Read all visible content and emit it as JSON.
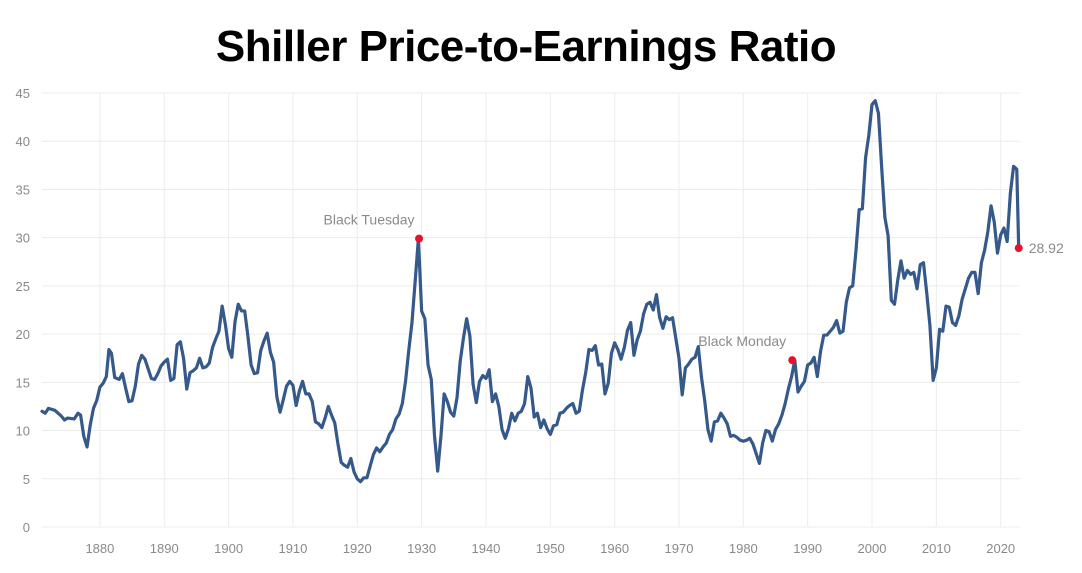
{
  "chart_data": {
    "type": "line",
    "title": "Shiller Price-to-Earnings Ratio",
    "xlabel": "",
    "ylabel": "",
    "xlim": [
      1871,
      2023
    ],
    "ylim": [
      0,
      45
    ],
    "x_ticks": [
      1880,
      1890,
      1900,
      1910,
      1920,
      1930,
      1940,
      1950,
      1960,
      1970,
      1980,
      1990,
      2000,
      2010,
      2020
    ],
    "y_ticks": [
      0,
      5,
      10,
      15,
      20,
      25,
      30,
      35,
      40,
      45
    ],
    "grid": true,
    "colors": {
      "line": "#34598a",
      "marker": "#e8112d",
      "grid": "#ececec",
      "axis_text": "#8a8a8a"
    },
    "series": [
      {
        "x": [
          1871,
          1871.5,
          1872,
          1873,
          1874,
          1874.5,
          1875,
          1876,
          1876.6,
          1877,
          1877.5,
          1878,
          1878.5,
          1879,
          1879.5,
          1880,
          1880.5,
          1881,
          1881.4,
          1881.8,
          1882.3,
          1883,
          1883.5,
          1884,
          1884.5,
          1885,
          1885.5,
          1886,
          1886.5,
          1887,
          1888,
          1888.5,
          1889,
          1889.5,
          1890,
          1890.5,
          1891,
          1891.5,
          1892,
          1892.5,
          1893,
          1893.5,
          1894,
          1894.5,
          1895,
          1895.5,
          1896,
          1896.5,
          1897,
          1897.5,
          1898,
          1898.5,
          1899,
          1899.5,
          1900,
          1900.5,
          1901,
          1901.5,
          1902,
          1902.5,
          1903,
          1903.5,
          1904,
          1904.5,
          1905,
          1905.5,
          1906,
          1906.5,
          1907,
          1907.5,
          1908,
          1908.5,
          1909,
          1909.5,
          1910,
          1910.5,
          1911,
          1911.5,
          1912,
          1912.5,
          1913,
          1913.5,
          1914,
          1914.5,
          1915,
          1915.5,
          1916,
          1916.5,
          1917,
          1917.5,
          1918,
          1918.5,
          1919,
          1919.5,
          1920,
          1920.5,
          1921,
          1921.5,
          1922,
          1922.5,
          1923,
          1923.5,
          1924,
          1924.5,
          1925,
          1925.5,
          1926,
          1926.5,
          1927,
          1927.5,
          1928,
          1928.5,
          1929,
          1929.5,
          1930,
          1930.5,
          1931,
          1931.5,
          1932,
          1932.5,
          1933,
          1933.5,
          1934,
          1934.5,
          1935,
          1935.5,
          1936,
          1936.5,
          1937,
          1937.5,
          1938,
          1938.5,
          1939,
          1939.5,
          1940,
          1940.5,
          1941,
          1941.5,
          1942,
          1942.5,
          1943,
          1943.5,
          1944,
          1944.5,
          1945,
          1945.5,
          1946,
          1946.5,
          1947,
          1947.5,
          1948,
          1948.5,
          1949,
          1949.5,
          1950,
          1950.5,
          1951,
          1951.5,
          1952,
          1952.5,
          1953,
          1953.5,
          1954,
          1954.5,
          1955,
          1955.5,
          1956,
          1956.5,
          1957,
          1957.5,
          1958,
          1958.5,
          1959,
          1959.5,
          1960,
          1960.5,
          1961,
          1961.5,
          1962,
          1962.5,
          1963,
          1963.5,
          1964,
          1964.5,
          1965,
          1965.5,
          1966,
          1966.5,
          1967,
          1967.5,
          1968,
          1968.5,
          1969,
          1969.5,
          1970,
          1970.5,
          1971,
          1971.5,
          1972,
          1972.5,
          1973,
          1973.5,
          1974,
          1974.5,
          1975,
          1975.5,
          1976,
          1976.5,
          1977,
          1977.5,
          1978,
          1978.5,
          1979,
          1979.5,
          1980,
          1980.5,
          1981,
          1981.5,
          1982,
          1982.5,
          1983,
          1983.5,
          1984,
          1984.5,
          1985,
          1985.5,
          1986,
          1986.5,
          1987,
          1987.5,
          1988,
          1988.5,
          1989,
          1989.5,
          1990,
          1990.5,
          1991,
          1991.5,
          1992,
          1992.5,
          1993,
          1993.5,
          1994,
          1994.5,
          1995,
          1995.5,
          1996,
          1996.5,
          1997,
          1997.5,
          1998,
          1998.5,
          1999,
          1999.5,
          2000,
          2000.5,
          2001,
          2001.5,
          2002,
          2002.5,
          2003,
          2003.5,
          2004,
          2004.5,
          2005,
          2005.5,
          2006,
          2006.5,
          2007,
          2007.5,
          2008,
          2008.5,
          2009,
          2009.5,
          2010,
          2010.5,
          2011,
          2011.5,
          2012,
          2012.5,
          2013,
          2013.5,
          2014,
          2014.5,
          2015,
          2015.5,
          2016,
          2016.5,
          2017,
          2017.5,
          2018,
          2018.5,
          2019,
          2019.5,
          2020,
          2020.5,
          2021,
          2021.5,
          2022,
          2022.5,
          2022.8
        ],
        "values": [
          12.0,
          11.8,
          12.3,
          12.1,
          11.5,
          11.1,
          11.3,
          11.2,
          11.8,
          11.6,
          9.4,
          8.3,
          10.6,
          12.3,
          13.1,
          14.5,
          14.9,
          15.6,
          18.4,
          18.0,
          15.5,
          15.3,
          15.9,
          14.4,
          13.0,
          13.1,
          14.6,
          16.9,
          17.8,
          17.4,
          15.4,
          15.3,
          15.9,
          16.7,
          17.1,
          17.4,
          15.2,
          15.4,
          18.9,
          19.2,
          17.5,
          14.3,
          16.0,
          16.2,
          16.5,
          17.5,
          16.5,
          16.6,
          17.0,
          18.6,
          19.5,
          20.3,
          22.9,
          21.0,
          18.5,
          17.6,
          21.3,
          23.1,
          22.4,
          22.4,
          19.8,
          16.8,
          15.9,
          16.0,
          18.3,
          19.3,
          20.1,
          18.1,
          17.1,
          13.5,
          11.9,
          13.2,
          14.6,
          15.1,
          14.7,
          12.6,
          14.1,
          15.1,
          13.8,
          13.8,
          13.0,
          10.9,
          10.7,
          10.3,
          11.3,
          12.5,
          11.6,
          10.8,
          8.6,
          6.7,
          6.4,
          6.2,
          7.1,
          5.7,
          5.0,
          4.7,
          5.1,
          5.1,
          6.3,
          7.5,
          8.2,
          7.8,
          8.3,
          8.7,
          9.6,
          10.1,
          11.2,
          11.7,
          12.8,
          15.1,
          18.3,
          21.2,
          25.5,
          29.9,
          22.4,
          21.6,
          16.8,
          15.3,
          9.5,
          5.8,
          9.4,
          13.8,
          13.0,
          11.9,
          11.5,
          13.4,
          17.2,
          19.6,
          21.6,
          19.8,
          14.8,
          12.9,
          15.1,
          15.7,
          15.4,
          16.3,
          13.0,
          13.8,
          12.5,
          10.1,
          9.2,
          10.2,
          11.8,
          11.0,
          11.8,
          12.0,
          12.8,
          15.6,
          14.4,
          11.4,
          11.8,
          10.3,
          11.1,
          10.2,
          9.6,
          10.5,
          10.6,
          11.8,
          11.9,
          12.3,
          12.6,
          12.8,
          11.8,
          12.0,
          14.2,
          16.0,
          18.4,
          18.3,
          18.8,
          16.8,
          16.9,
          13.8,
          14.9,
          18.0,
          19.1,
          18.4,
          17.4,
          18.6,
          20.4,
          21.2,
          17.8,
          19.4,
          20.3,
          22.1,
          23.1,
          23.3,
          22.5,
          24.1,
          21.7,
          20.6,
          21.8,
          21.5,
          21.7,
          19.6,
          17.5,
          13.7,
          16.5,
          16.9,
          17.4,
          17.6,
          18.7,
          15.5,
          13.1,
          10.1,
          8.9,
          10.9,
          11.0,
          11.8,
          11.3,
          10.7,
          9.4,
          9.5,
          9.3,
          9.0,
          8.9,
          9.0,
          9.2,
          8.6,
          7.6,
          6.6,
          8.7,
          10.0,
          9.9,
          8.9,
          10.1,
          10.7,
          11.6,
          12.8,
          14.3,
          15.6,
          17.3,
          14.0,
          14.6,
          15.1,
          16.8,
          17.0,
          17.6,
          15.6,
          18.2,
          19.9,
          19.9,
          20.3,
          20.7,
          21.4,
          20.1,
          20.3,
          23.3,
          24.8,
          25.0,
          28.6,
          32.9,
          33.0,
          38.3,
          40.6,
          43.8,
          44.2,
          42.9,
          37.3,
          32.1,
          30.2,
          23.5,
          23.1,
          25.6,
          27.6,
          25.8,
          26.6,
          26.2,
          26.4,
          24.7,
          27.2,
          27.4,
          24.3,
          20.9,
          15.2,
          16.5,
          20.5,
          20.3,
          22.9,
          22.8,
          21.2,
          20.9,
          21.9,
          23.6,
          24.7,
          25.8,
          26.4,
          26.4,
          24.2,
          27.4,
          28.7,
          30.6,
          33.3,
          31.6,
          28.4,
          30.3,
          31.0,
          29.6,
          34.6,
          37.4,
          37.1,
          28.9
        ]
      }
    ],
    "annotations": [
      {
        "label": "Black Tuesday",
        "x": 1929.6,
        "y": 29.9
      },
      {
        "label": "Black Monday",
        "x": 1987.6,
        "y": 17.3
      }
    ],
    "last_value": {
      "x": 2022.8,
      "y": 28.92,
      "label": "28.92"
    }
  }
}
